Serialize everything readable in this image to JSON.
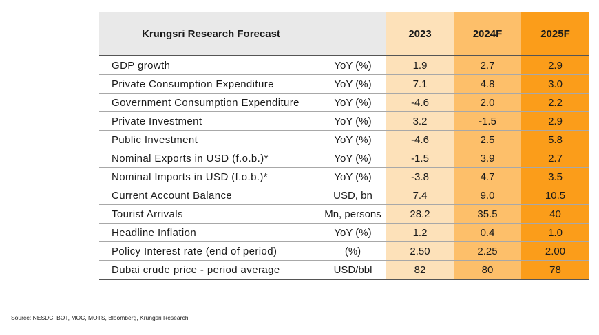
{
  "title": "Krungsri Research Forecast",
  "source": "Source: NESDC, BOT, MOC, MOTS, Bloomberg, Krungsri Research",
  "colors": {
    "header_grey": "#e9e9e9",
    "y2023": "#fde1b9",
    "y2024F": "#fdbf6a",
    "y2025F": "#fb9d1a"
  },
  "chart_data": {
    "type": "table",
    "title": "Krungsri Research Forecast",
    "columns": [
      "2023",
      "2024F",
      "2025F"
    ],
    "rows": [
      {
        "indicator": "GDP growth",
        "unit": "YoY (%)",
        "values": [
          "1.9",
          "2.7",
          "2.9"
        ]
      },
      {
        "indicator": "Private Consumption Expenditure",
        "unit": "YoY (%)",
        "values": [
          "7.1",
          "4.8",
          "3.0"
        ]
      },
      {
        "indicator": "Government Consumption Expenditure",
        "unit": "YoY (%)",
        "values": [
          "-4.6",
          "2.0",
          "2.2"
        ]
      },
      {
        "indicator": "Private Investment",
        "unit": "YoY (%)",
        "values": [
          "3.2",
          "-1.5",
          "2.9"
        ]
      },
      {
        "indicator": "Public Investment",
        "unit": "YoY (%)",
        "values": [
          "-4.6",
          "2.5",
          "5.8"
        ]
      },
      {
        "indicator": "Nominal Exports in USD (f.o.b.)*",
        "unit": "YoY (%)",
        "values": [
          "-1.5",
          "3.9",
          "2.7"
        ]
      },
      {
        "indicator": "Nominal Imports in USD (f.o.b.)*",
        "unit": "YoY (%)",
        "values": [
          "-3.8",
          "4.7",
          "3.5"
        ]
      },
      {
        "indicator": "Current Account Balance",
        "unit": "USD, bn",
        "values": [
          "7.4",
          "9.0",
          "10.5"
        ]
      },
      {
        "indicator": "Tourist Arrivals",
        "unit": "Mn, persons",
        "values": [
          "28.2",
          "35.5",
          "40"
        ]
      },
      {
        "indicator": "Headline Inflation",
        "unit": "YoY (%)",
        "values": [
          "1.2",
          "0.4",
          "1.0"
        ]
      },
      {
        "indicator": "Policy Interest rate (end of period)",
        "unit": "(%)",
        "values": [
          "2.50",
          "2.25",
          "2.00"
        ]
      },
      {
        "indicator": "Dubai crude price - period average",
        "unit": "USD/bbl",
        "values": [
          "82",
          "80",
          "78"
        ]
      }
    ]
  }
}
